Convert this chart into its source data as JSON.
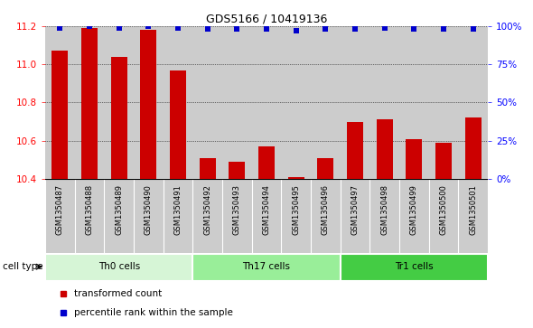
{
  "title": "GDS5166 / 10419136",
  "samples": [
    "GSM1350487",
    "GSM1350488",
    "GSM1350489",
    "GSM1350490",
    "GSM1350491",
    "GSM1350492",
    "GSM1350493",
    "GSM1350494",
    "GSM1350495",
    "GSM1350496",
    "GSM1350497",
    "GSM1350498",
    "GSM1350499",
    "GSM1350500",
    "GSM1350501"
  ],
  "transformed_counts": [
    11.07,
    11.19,
    11.04,
    11.18,
    10.97,
    10.51,
    10.49,
    10.57,
    10.41,
    10.51,
    10.7,
    10.71,
    10.61,
    10.59,
    10.72
  ],
  "percentile_ranks": [
    99,
    100,
    99,
    100,
    99,
    98,
    98,
    98,
    97,
    98,
    98,
    99,
    98,
    98,
    98
  ],
  "ylim_left": [
    10.4,
    11.2
  ],
  "ylim_right": [
    0,
    100
  ],
  "yticks_left": [
    10.4,
    10.6,
    10.8,
    11.0,
    11.2
  ],
  "yticks_right": [
    0,
    25,
    50,
    75,
    100
  ],
  "ytick_labels_right": [
    "0%",
    "25%",
    "50%",
    "75%",
    "100%"
  ],
  "cell_groups": [
    {
      "label": "Th0 cells",
      "start": 0,
      "end": 5,
      "color": "#d6f5d6"
    },
    {
      "label": "Th17 cells",
      "start": 5,
      "end": 10,
      "color": "#99ee99"
    },
    {
      "label": "Tr1 cells",
      "start": 10,
      "end": 15,
      "color": "#44cc44"
    }
  ],
  "bar_color": "#cc0000",
  "dot_color": "#0000cc",
  "plot_bg_color": "#cccccc",
  "xtick_bg_color": "#cccccc",
  "bar_width": 0.55,
  "cell_type_label": "cell type",
  "legend_items": [
    {
      "label": "transformed count",
      "color": "#cc0000"
    },
    {
      "label": "percentile rank within the sample",
      "color": "#0000cc"
    }
  ]
}
